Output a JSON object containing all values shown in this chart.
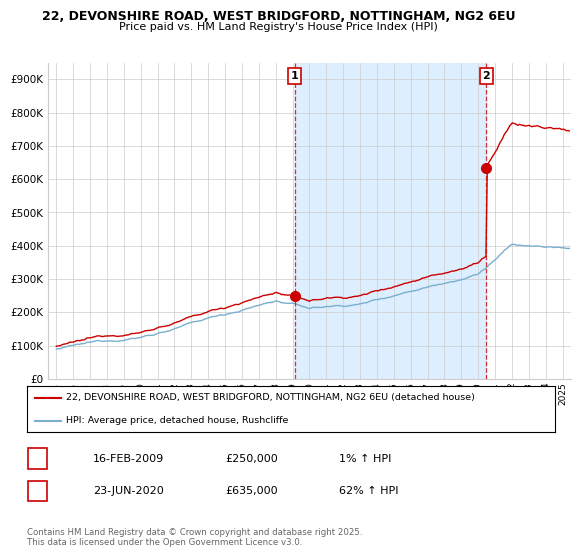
{
  "title_line1": "22, DEVONSHIRE ROAD, WEST BRIDGFORD, NOTTINGHAM, NG2 6EU",
  "title_line2": "Price paid vs. HM Land Registry's House Price Index (HPI)",
  "ytick_values": [
    0,
    100000,
    200000,
    300000,
    400000,
    500000,
    600000,
    700000,
    800000,
    900000
  ],
  "ylim": [
    0,
    950000
  ],
  "xlim_start": 1994.5,
  "xlim_end": 2025.5,
  "xtick_years": [
    1995,
    1996,
    1997,
    1998,
    1999,
    2000,
    2001,
    2002,
    2003,
    2004,
    2005,
    2006,
    2007,
    2008,
    2009,
    2010,
    2011,
    2012,
    2013,
    2014,
    2015,
    2016,
    2017,
    2018,
    2019,
    2020,
    2021,
    2022,
    2023,
    2024,
    2025
  ],
  "background_color": "#ffffff",
  "grid_color": "#cccccc",
  "shade_color": "#ddeeff",
  "sale1_x": 2009.12,
  "sale1_y": 250000,
  "sale1_label": "1",
  "sale2_x": 2020.48,
  "sale2_y": 635000,
  "sale2_label": "2",
  "line1_color": "#cc0000",
  "line2_color": "#7aafcf",
  "dot_color": "#cc0000",
  "legend_line1": "22, DEVONSHIRE ROAD, WEST BRIDGFORD, NOTTINGHAM, NG2 6EU (detached house)",
  "legend_line2": "HPI: Average price, detached house, Rushcliffe",
  "table_row1_num": "1",
  "table_row1_date": "16-FEB-2009",
  "table_row1_price": "£250,000",
  "table_row1_hpi": "1% ↑ HPI",
  "table_row2_num": "2",
  "table_row2_date": "23-JUN-2020",
  "table_row2_price": "£635,000",
  "table_row2_hpi": "62% ↑ HPI",
  "footer": "Contains HM Land Registry data © Crown copyright and database right 2025.\nThis data is licensed under the Open Government Licence v3.0.",
  "vline_color": "#cc0000",
  "label_box_color": "#cc0000"
}
